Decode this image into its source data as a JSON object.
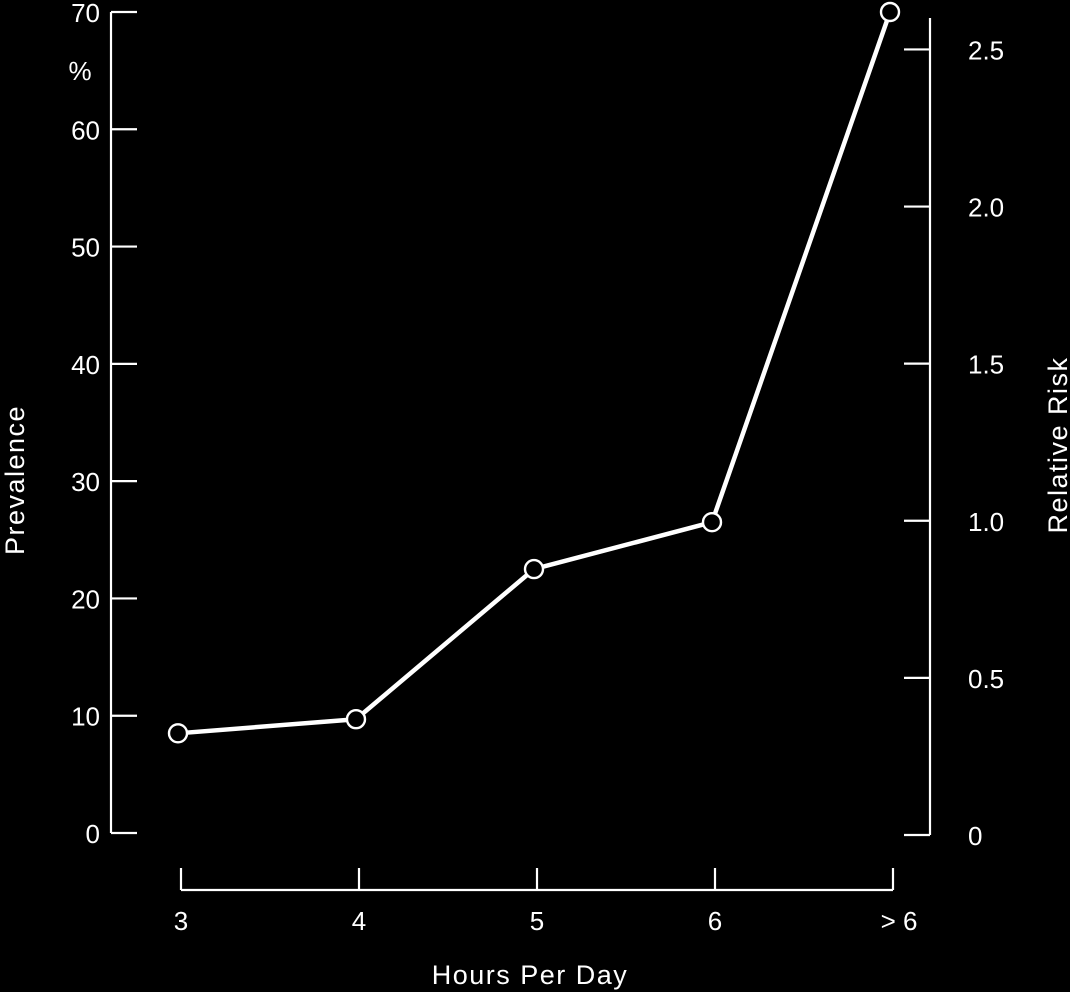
{
  "chart_data": {
    "type": "line",
    "categories": [
      "3",
      "4",
      "5",
      "6",
      "> 6"
    ],
    "series": [
      {
        "values": [
          8.5,
          9.7,
          22.5,
          26.5,
          70
        ]
      }
    ],
    "xlabel": "Hours Per Day",
    "ylabel": "Prevalence",
    "ylabel_unit": "%",
    "y2label": "Relative Risk",
    "ylim": [
      0,
      70
    ],
    "y_ticks": [
      0,
      10,
      20,
      30,
      40,
      50,
      60,
      70
    ],
    "y2lim": [
      0,
      2.5
    ],
    "y2_ticks": [
      "0",
      "0.5",
      "1.0",
      "1.5",
      "2.0",
      "2.5"
    ],
    "grid": false,
    "legend": "none",
    "colors": {
      "background": "#000000",
      "foreground": "#ffffff"
    }
  }
}
